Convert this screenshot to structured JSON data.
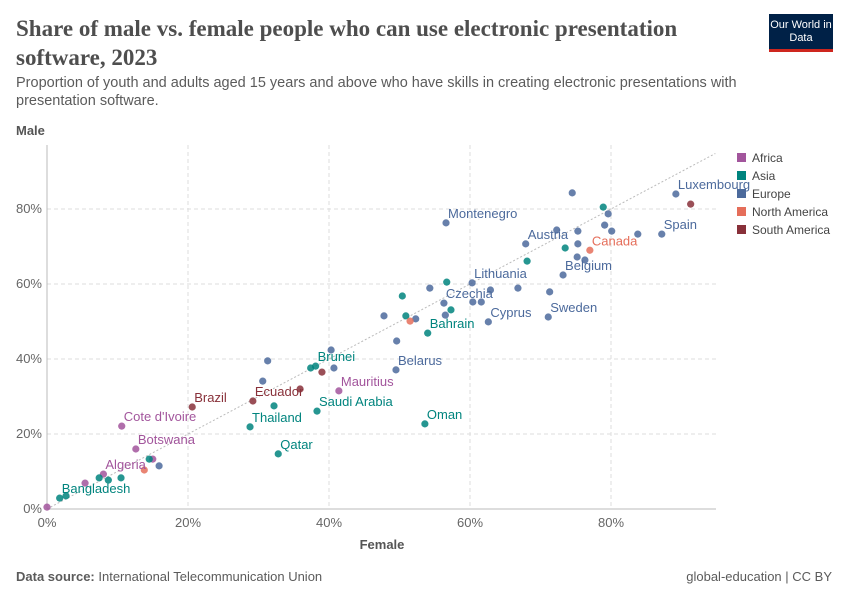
{
  "header": {
    "title": "Share of male vs. female people who can use electronic presentation software, 2023",
    "subtitle": "Proportion of youth and adults aged 15 years and above who have skills in creating electronic presentations with presentation software.",
    "logo": "Our World in Data"
  },
  "footer": {
    "source_label": "Data source:",
    "source": "International Telecommunication Union",
    "license": "global-education | CC BY"
  },
  "chart_data": {
    "type": "scatter",
    "xlabel": "Female",
    "ylabel": "Male",
    "xlim": [
      -1,
      95
    ],
    "ylim": [
      0,
      95
    ],
    "grid": true,
    "legend_position": "right",
    "xticks": [
      "0%",
      "20%",
      "40%",
      "60%",
      "80%"
    ],
    "yticks": [
      "0%",
      "20%",
      "40%",
      "60%",
      "80%"
    ],
    "reference_line": "y = x (dotted)",
    "legend": [
      {
        "name": "Africa",
        "color": "#a2559c"
      },
      {
        "name": "Asia",
        "color": "#00847e"
      },
      {
        "name": "Europe",
        "color": "#4c6a9c"
      },
      {
        "name": "North America",
        "color": "#e56e5a"
      },
      {
        "name": "South America",
        "color": "#883039"
      }
    ],
    "points": [
      {
        "r": "Africa",
        "x": 0,
        "y": 0.5
      },
      {
        "r": "Africa",
        "x": 10.6,
        "y": 22.1,
        "label": "Cote d'Ivoire"
      },
      {
        "r": "Africa",
        "x": 12.6,
        "y": 16,
        "label": "Botswana"
      },
      {
        "r": "Africa",
        "x": 8,
        "y": 9.3,
        "label": "Algeria"
      },
      {
        "r": "Africa",
        "x": 5.4,
        "y": 6.9
      },
      {
        "r": "Africa",
        "x": 15,
        "y": 13.3
      },
      {
        "r": "Africa",
        "x": 41.4,
        "y": 31.5,
        "label": "Mauritius"
      },
      {
        "r": "Asia",
        "x": 1.8,
        "y": 2.9,
        "label": "Bangladesh"
      },
      {
        "r": "Asia",
        "x": 2.7,
        "y": 3.5
      },
      {
        "r": "Asia",
        "x": 7.4,
        "y": 8.3
      },
      {
        "r": "Asia",
        "x": 8.7,
        "y": 7.7
      },
      {
        "r": "Asia",
        "x": 10.5,
        "y": 8.3
      },
      {
        "r": "Asia",
        "x": 14.5,
        "y": 13.3
      },
      {
        "r": "Asia",
        "x": 28.8,
        "y": 21.9,
        "label": "Thailand"
      },
      {
        "r": "Asia",
        "x": 32.8,
        "y": 14.7,
        "label": "Qatar"
      },
      {
        "r": "Asia",
        "x": 32.2,
        "y": 27.5
      },
      {
        "r": "Asia",
        "x": 38.3,
        "y": 26.1,
        "label": "Saudi Arabia"
      },
      {
        "r": "Asia",
        "x": 37.4,
        "y": 37.6
      },
      {
        "r": "Asia",
        "x": 38.1,
        "y": 38.1,
        "label": "Brunei"
      },
      {
        "r": "Asia",
        "x": 53.6,
        "y": 22.7,
        "label": "Oman"
      },
      {
        "r": "Asia",
        "x": 54,
        "y": 46.9,
        "label": "Bahrain"
      },
      {
        "r": "Asia",
        "x": 57.3,
        "y": 53.1
      },
      {
        "r": "Asia",
        "x": 50.9,
        "y": 51.5
      },
      {
        "r": "Asia",
        "x": 56.7,
        "y": 60.5
      },
      {
        "r": "Asia",
        "x": 50.4,
        "y": 56.8
      },
      {
        "r": "Asia",
        "x": 68.1,
        "y": 66.1
      },
      {
        "r": "Asia",
        "x": 73.5,
        "y": 69.6
      },
      {
        "r": "Asia",
        "x": 78.9,
        "y": 80.5
      },
      {
        "r": "Europe",
        "x": 15.9,
        "y": 11.5
      },
      {
        "r": "Europe",
        "x": 31.3,
        "y": 39.5
      },
      {
        "r": "Europe",
        "x": 30.6,
        "y": 34.1
      },
      {
        "r": "Europe",
        "x": 40.3,
        "y": 42.4
      },
      {
        "r": "Europe",
        "x": 40.7,
        "y": 37.6
      },
      {
        "r": "Europe",
        "x": 49.5,
        "y": 37.1,
        "label": "Belarus"
      },
      {
        "r": "Europe",
        "x": 49.6,
        "y": 44.8
      },
      {
        "r": "Europe",
        "x": 47.8,
        "y": 51.5
      },
      {
        "r": "Europe",
        "x": 52.3,
        "y": 50.7
      },
      {
        "r": "Europe",
        "x": 54.3,
        "y": 58.9
      },
      {
        "r": "Europe",
        "x": 56.3,
        "y": 54.9,
        "label": "Czechia"
      },
      {
        "r": "Europe",
        "x": 56.5,
        "y": 51.7
      },
      {
        "r": "Europe",
        "x": 60.3,
        "y": 60.3,
        "label": "Lithuania"
      },
      {
        "r": "Europe",
        "x": 60.4,
        "y": 55.2
      },
      {
        "r": "Europe",
        "x": 61.6,
        "y": 55.2
      },
      {
        "r": "Europe",
        "x": 62.9,
        "y": 58.4
      },
      {
        "r": "Europe",
        "x": 62.6,
        "y": 49.9,
        "label": "Cyprus"
      },
      {
        "r": "Europe",
        "x": 66.8,
        "y": 58.9
      },
      {
        "r": "Europe",
        "x": 71.1,
        "y": 51.2,
        "label": "Sweden"
      },
      {
        "r": "Europe",
        "x": 71.3,
        "y": 57.9
      },
      {
        "r": "Europe",
        "x": 73.2,
        "y": 62.4,
        "label": "Belgium"
      },
      {
        "r": "Europe",
        "x": 75.2,
        "y": 67.2
      },
      {
        "r": "Europe",
        "x": 76.3,
        "y": 66.4
      },
      {
        "r": "Europe",
        "x": 56.6,
        "y": 76.3,
        "label": "Montenegro"
      },
      {
        "r": "Europe",
        "x": 67.9,
        "y": 70.7,
        "label": "Austria"
      },
      {
        "r": "Europe",
        "x": 72.3,
        "y": 74.4
      },
      {
        "r": "Europe",
        "x": 75.3,
        "y": 70.7
      },
      {
        "r": "Europe",
        "x": 75.3,
        "y": 74.1
      },
      {
        "r": "Europe",
        "x": 74.5,
        "y": 84.3
      },
      {
        "r": "Europe",
        "x": 79.6,
        "y": 78.7
      },
      {
        "r": "Europe",
        "x": 79.1,
        "y": 75.7
      },
      {
        "r": "Europe",
        "x": 80.1,
        "y": 74.1
      },
      {
        "r": "Europe",
        "x": 83.8,
        "y": 73.3
      },
      {
        "r": "Europe",
        "x": 87.2,
        "y": 73.3,
        "label": "Spain"
      },
      {
        "r": "Europe",
        "x": 89.2,
        "y": 84,
        "label": "Luxembourg"
      },
      {
        "r": "North America",
        "x": 77,
        "y": 69,
        "label": "Canada"
      },
      {
        "r": "North America",
        "x": 51.5,
        "y": 50.1
      },
      {
        "r": "North America",
        "x": 13.8,
        "y": 10.4
      },
      {
        "r": "South America",
        "x": 91.3,
        "y": 81.3
      },
      {
        "r": "South America",
        "x": 20.6,
        "y": 27.2,
        "label": "Brazil"
      },
      {
        "r": "South America",
        "x": 29.2,
        "y": 28.8,
        "label": "Ecuador"
      },
      {
        "r": "South America",
        "x": 35.9,
        "y": 32
      },
      {
        "r": "South America",
        "x": 39,
        "y": 36.5
      }
    ]
  }
}
